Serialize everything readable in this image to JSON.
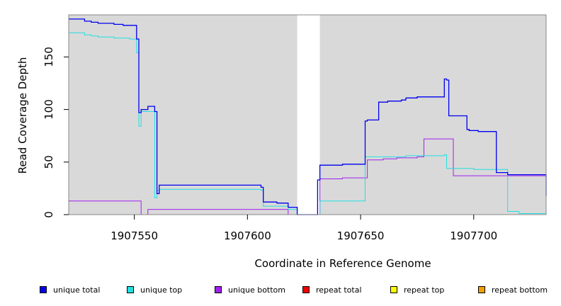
{
  "chart_data": {
    "type": "line",
    "title": "",
    "xlabel": "Coordinate in Reference Genome",
    "ylabel": "Read Coverage Depth",
    "xlim": [
      1907521,
      1907732
    ],
    "ylim": [
      0,
      190
    ],
    "xticks": [
      1907550,
      1907600,
      1907650,
      1907700
    ],
    "xtick_labels": [
      "1907550",
      "1907600",
      "1907650",
      "1907700"
    ],
    "yticks": [
      0,
      50,
      100,
      150
    ],
    "ytick_labels": [
      "0",
      "50",
      "100",
      "150"
    ],
    "grid": false,
    "background_color": "#d9d9d9",
    "gap_region": [
      1907622,
      1907632
    ],
    "legend_position": "bottom",
    "series": [
      {
        "name": "unique total",
        "color": "#0000ee",
        "x": [
          1907521,
          1907528,
          1907531,
          1907534,
          1907541,
          1907545,
          1907551,
          1907552,
          1907553,
          1907556,
          1907559,
          1907560,
          1907561,
          1907606,
          1907607,
          1907613,
          1907618,
          1907622,
          1907631,
          1907632,
          1907642,
          1907652,
          1907653,
          1907658,
          1907662,
          1907668,
          1907670,
          1907675,
          1907687,
          1907688,
          1907689,
          1907697,
          1907698,
          1907702,
          1907710,
          1907711,
          1907715,
          1907732
        ],
        "y": [
          186,
          184,
          183,
          182,
          181,
          180,
          167,
          97,
          100,
          103,
          98,
          20,
          28,
          26,
          12,
          11,
          7,
          0,
          33,
          47,
          48,
          89,
          90,
          107,
          108,
          109,
          111,
          112,
          129,
          128,
          94,
          81,
          80,
          79,
          40,
          40,
          38,
          18
        ]
      },
      {
        "name": "unique top",
        "color": "#22e0e0",
        "x": [
          1907521,
          1907528,
          1907531,
          1907534,
          1907541,
          1907548,
          1907551,
          1907552,
          1907553,
          1907559,
          1907560,
          1907561,
          1907606,
          1907607,
          1907618,
          1907622,
          1907632,
          1907652,
          1907660,
          1907670,
          1907687,
          1907688,
          1907700,
          1907715,
          1907720,
          1907732
        ],
        "y": [
          173,
          171,
          170,
          169,
          168,
          167,
          154,
          84,
          98,
          16,
          23,
          24,
          23,
          8,
          5,
          0,
          13,
          55,
          55,
          56,
          57,
          44,
          43,
          3,
          1,
          1
        ]
      },
      {
        "name": "unique bottom",
        "color": "#a020f0",
        "x": [
          1907521,
          1907553,
          1907556,
          1907618,
          1907622,
          1907632,
          1907642,
          1907650,
          1907653,
          1907660,
          1907666,
          1907675,
          1907678,
          1907691,
          1907715,
          1907732
        ],
        "y": [
          13,
          0,
          5,
          0,
          0,
          34,
          35,
          35,
          52,
          53,
          54,
          55,
          72,
          37,
          37,
          17
        ]
      },
      {
        "name": "repeat total",
        "color": "#ee0000",
        "x": [
          1907521,
          1907732
        ],
        "y": [
          0,
          0
        ]
      },
      {
        "name": "repeat top",
        "color": "#ffff00",
        "x": [
          1907521,
          1907732
        ],
        "y": [
          0,
          0
        ]
      },
      {
        "name": "repeat bottom",
        "color": "#f0a000",
        "x": [
          1907521,
          1907732
        ],
        "y": [
          0,
          0
        ]
      }
    ]
  }
}
